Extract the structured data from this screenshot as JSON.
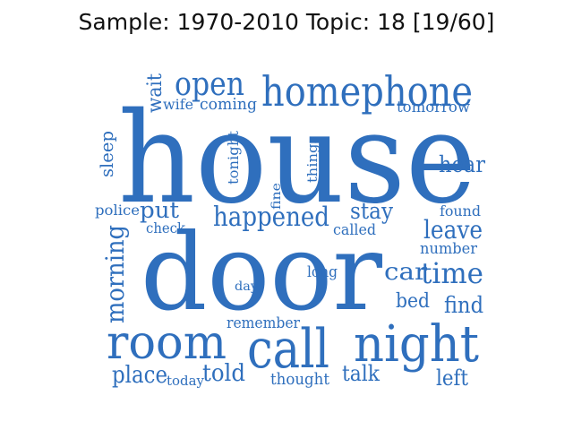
{
  "title": "Sample: 1970-2010 Topic: 18 [19/60]",
  "word_color": "#2f6fbd",
  "words": {
    "house": "house",
    "door": "door",
    "homephone": "homephone",
    "night": "night",
    "room": "room",
    "call": "call",
    "open": "open",
    "happened": "happened",
    "time": "time",
    "morning": "morning",
    "leave": "leave",
    "hear": "hear",
    "stay": "stay",
    "find": "find",
    "place": "place",
    "told": "told",
    "talk": "talk",
    "left": "left",
    "car": "car",
    "put": "put",
    "sleep": "sleep",
    "wait": "wait",
    "bed": "bed",
    "number": "number",
    "wife": "wife",
    "coming": "coming",
    "tomorrow": "tomorrow",
    "tonight": "tonight",
    "things": "things",
    "fine": "fine",
    "police": "police",
    "check": "check",
    "called": "called",
    "found": "found",
    "long": "long",
    "day": "day",
    "remember": "remember",
    "thought": "thought",
    "today": "today"
  }
}
